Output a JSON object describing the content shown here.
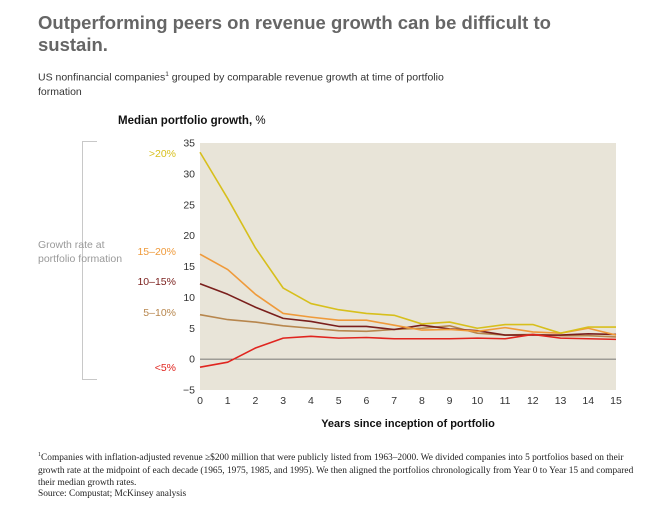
{
  "header": {
    "title": "Outperforming peers on revenue growth can be difficult to sustain.",
    "subtitle_pre": "US nonfinancial companies",
    "subtitle_sup": "1",
    "subtitle_post": " grouped by comparable revenue growth at time of portfolio formation"
  },
  "side_label": "Growth rate at portfolio formation",
  "footnote": {
    "marker": "1",
    "text": "Companies with inflation-adjusted revenue ≥$200 million that were publicly listed from 1963–2000. We divided companies into 5 portfolios based on their growth rate at the midpoint of each decade (1965, 1975, 1985, and 1995). We then aligned the portfolios chronologically from Year 0 to Year 15 and compared their median growth rates."
  },
  "source": "Source: Compustat; McKinsey analysis",
  "chart_data": {
    "type": "line",
    "ylabel_bold": "Median portfolio growth,",
    "ylabel_unit": " %",
    "xlabel": "Years since inception of portfolio",
    "xlim": [
      0,
      15
    ],
    "ylim": [
      -5,
      35
    ],
    "x_ticks": [
      0,
      1,
      2,
      3,
      4,
      5,
      6,
      7,
      8,
      9,
      10,
      11,
      12,
      13,
      14,
      15
    ],
    "y_ticks": [
      -5,
      0,
      5,
      10,
      15,
      20,
      25,
      30,
      35
    ],
    "plot_background": "#e8e4d8",
    "x": [
      0,
      1,
      2,
      3,
      4,
      5,
      6,
      7,
      8,
      9,
      10,
      11,
      12,
      13,
      14,
      15
    ],
    "series": [
      {
        "name": ">20%",
        "color": "#d7bf1c",
        "values": [
          33.5,
          26,
          18,
          11.5,
          9,
          8,
          7.4,
          7.1,
          5.7,
          6.0,
          5.0,
          5.6,
          5.6,
          4.2,
          5.2,
          5.2
        ]
      },
      {
        "name": "15–20%",
        "color": "#ef9a3a",
        "values": [
          17,
          14.5,
          10.5,
          7.4,
          6.8,
          6.3,
          6.3,
          5.5,
          4.7,
          4.8,
          4.5,
          5.1,
          4.4,
          4.2,
          5.0,
          3.9
        ]
      },
      {
        "name": "10–15%",
        "color": "#7a1f1c",
        "values": [
          12.2,
          10.5,
          8.4,
          6.6,
          6.1,
          5.3,
          5.3,
          4.8,
          5.5,
          4.9,
          4.6,
          3.9,
          3.9,
          3.9,
          4.1,
          4.0
        ]
      },
      {
        "name": "5–10%",
        "color": "#b7864d",
        "values": [
          7.2,
          6.4,
          6.0,
          5.4,
          5.0,
          4.6,
          4.5,
          4.8,
          5.0,
          5.4,
          4.2,
          3.9,
          4.0,
          3.8,
          3.8,
          3.6
        ]
      },
      {
        "name": "<5%",
        "color": "#e0251f",
        "values": [
          -1.3,
          -0.5,
          1.8,
          3.4,
          3.7,
          3.4,
          3.5,
          3.3,
          3.3,
          3.3,
          3.4,
          3.3,
          4.0,
          3.4,
          3.3,
          3.2
        ]
      }
    ]
  }
}
